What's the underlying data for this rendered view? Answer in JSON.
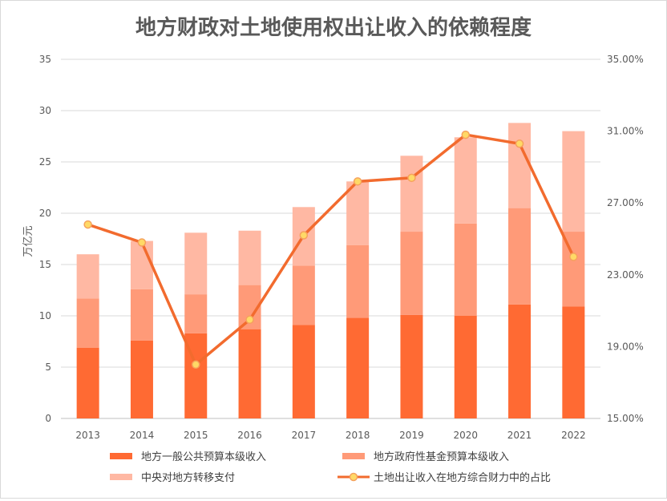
{
  "chart_data": {
    "type": "bar",
    "stacked": true,
    "title": "地方财政对土地使用权出让收入的依赖程度",
    "ylabel": "万亿元",
    "categories": [
      "2013",
      "2014",
      "2015",
      "2016",
      "2017",
      "2018",
      "2019",
      "2020",
      "2021",
      "2022"
    ],
    "ylim": [
      0,
      35
    ],
    "yticks": [
      "0",
      "5",
      "10",
      "15",
      "20",
      "25",
      "30",
      "35"
    ],
    "y2lim": [
      0.15,
      0.35
    ],
    "y2ticks": [
      "15.00%",
      "19.00%",
      "23.00%",
      "27.00%",
      "31.00%",
      "35.00%"
    ],
    "series": [
      {
        "name": "地方一般公共预算本级收入",
        "kind": "bar",
        "color": "#ff6a33",
        "values": [
          6.9,
          7.6,
          8.3,
          8.7,
          9.1,
          9.8,
          10.1,
          10.0,
          11.1,
          10.9
        ]
      },
      {
        "name": "地方政府性基金预算本级收入",
        "kind": "bar",
        "color": "#ff9a78",
        "values": [
          4.8,
          5.0,
          3.8,
          4.3,
          5.8,
          7.1,
          8.1,
          9.0,
          9.4,
          7.3
        ]
      },
      {
        "name": "中央对地方转移支付",
        "kind": "bar",
        "color": "#ffb8a3",
        "values": [
          4.3,
          4.7,
          6.0,
          5.3,
          5.7,
          6.2,
          7.4,
          8.4,
          8.3,
          9.8
        ]
      },
      {
        "name": "土地出让收入在地方综合财力中的占比",
        "kind": "line",
        "axis": "right",
        "color": "#f26b2e",
        "markerFill": "#ffd966",
        "values": [
          0.258,
          0.248,
          0.18,
          0.205,
          0.252,
          0.282,
          0.284,
          0.308,
          0.303,
          0.24
        ]
      }
    ],
    "grid": true,
    "legend_position": "bottom"
  }
}
